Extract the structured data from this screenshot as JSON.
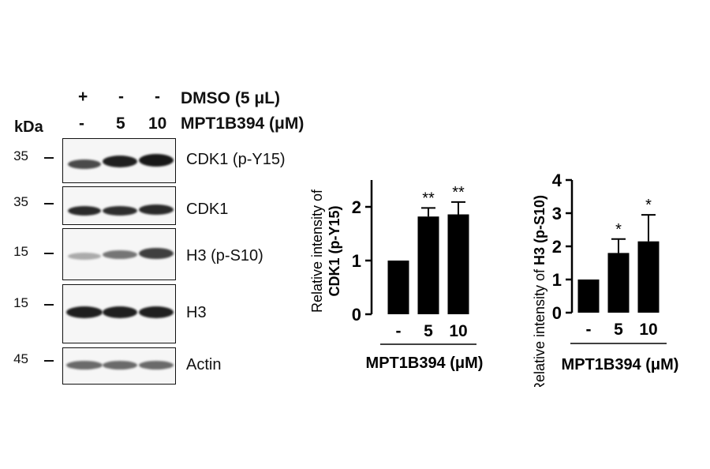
{
  "blot": {
    "kda_label": "kDa",
    "rows": [
      {
        "label": "DMSO (5 μL)",
        "cells": [
          "+",
          "-",
          "-"
        ]
      },
      {
        "label": "MPT1B394 (μM)",
        "cells": [
          "-",
          "5",
          "10"
        ]
      }
    ],
    "panels": [
      {
        "protein": "CDK1 (p-Y15)",
        "mw": "35",
        "band_intensity": [
          0.75,
          0.95,
          0.98
        ]
      },
      {
        "protein": "CDK1",
        "mw": "35",
        "band_intensity": [
          0.9,
          0.88,
          0.9
        ]
      },
      {
        "protein": "H3 (p-S10)",
        "mw": "15",
        "band_intensity": [
          0.3,
          0.55,
          0.8
        ]
      },
      {
        "protein": "H3",
        "mw": "15",
        "band_intensity": [
          0.95,
          0.95,
          0.95
        ]
      },
      {
        "protein": "Actin",
        "mw": "45",
        "band_intensity": [
          0.6,
          0.6,
          0.6
        ]
      }
    ]
  },
  "chart_data": [
    {
      "type": "bar",
      "categories": [
        "-",
        "5",
        "10"
      ],
      "values": [
        1.0,
        1.82,
        1.86
      ],
      "errors": [
        0,
        0.16,
        0.23
      ],
      "significance": [
        "",
        "**",
        "**"
      ],
      "ylabel_normal": "Relative intensity of",
      "ylabel_bold": "CDK1 (p-Y15)",
      "xlabel": "MPT1B394 (μM)",
      "ylim": [
        0,
        2.5
      ],
      "yticks": [
        0,
        1,
        2
      ],
      "ytick_labels": [
        "0",
        "1",
        "2"
      ],
      "grid": false,
      "bar_color": "#000000"
    },
    {
      "type": "bar",
      "categories": [
        "-",
        "5",
        "10"
      ],
      "values": [
        1.0,
        1.8,
        2.15
      ],
      "errors": [
        0,
        0.42,
        0.8
      ],
      "significance": [
        "",
        "*",
        "*"
      ],
      "ylabel_normal": "Relative intensity of",
      "ylabel_bold": "H3 (p-S10)",
      "xlabel": "MPT1B394 (μM)",
      "ylim": [
        0,
        4
      ],
      "yticks": [
        0,
        1,
        2,
        3,
        4
      ],
      "ytick_labels": [
        "0",
        "1",
        "2",
        "3",
        "4"
      ],
      "grid": false,
      "bar_color": "#000000"
    }
  ]
}
